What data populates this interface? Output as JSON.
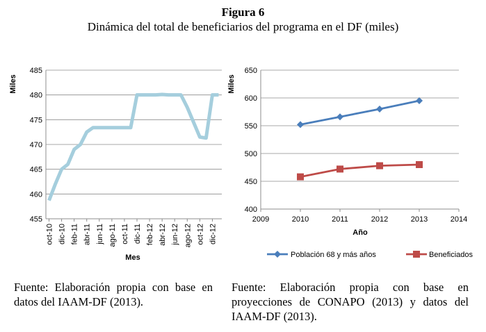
{
  "figure": {
    "label": "Figura 6",
    "title": "Dinámica del total de beneficiarios del programa en el DF (miles)"
  },
  "sources": {
    "left": "Fuente: Elaboración propia con base en datos del IAAM-DF (2013).",
    "right": "Fuente: Elaboración propia con base en proyecciones de CONAPO (2013) y datos del IAAM-DF (2013)."
  },
  "chart_data": [
    {
      "type": "line",
      "xlabel": "Mes",
      "ylabel": "Miles",
      "ylim": [
        455,
        485
      ],
      "yticks": [
        455,
        460,
        465,
        470,
        475,
        480,
        485
      ],
      "grid": "horizontal",
      "x": [
        "oct-10",
        "nov-10",
        "dic-10",
        "ene-11",
        "feb-11",
        "mar-11",
        "abr-11",
        "may-11",
        "jun-11",
        "jul-11",
        "ago-11",
        "sep-11",
        "oct-11",
        "nov-11",
        "dic-11",
        "ene-12",
        "feb-12",
        "mar-12",
        "abr-12",
        "may-12",
        "jun-12",
        "jul-12",
        "ago-12",
        "sep-12",
        "oct-12",
        "nov-12",
        "dic-12",
        "ene-13"
      ],
      "xtick_labels": [
        "oct-10",
        "dic-10",
        "feb-11",
        "abr-11",
        "jun-11",
        "ago-11",
        "oct-11",
        "dic-11",
        "feb-12",
        "abr-12",
        "jun-12",
        "ago-12",
        "oct-12",
        "dic-12"
      ],
      "series": [
        {
          "color": "#a5cedd",
          "values": [
            458.7,
            462.0,
            465.0,
            466.0,
            469.0,
            470.0,
            472.5,
            473.4,
            473.4,
            473.4,
            473.4,
            473.4,
            473.4,
            473.4,
            480.0,
            480.0,
            480.0,
            480.0,
            480.1,
            480.0,
            480.0,
            480.0,
            477.5,
            474.5,
            471.5,
            471.3,
            480.0,
            480.0
          ]
        }
      ]
    },
    {
      "type": "line",
      "xlabel": "Año",
      "ylabel": "Miles",
      "xlim": [
        2009,
        2014
      ],
      "xticks": [
        2009,
        2010,
        2011,
        2012,
        2013,
        2014
      ],
      "ylim": [
        400,
        650
      ],
      "yticks": [
        400,
        450,
        500,
        550,
        600,
        650
      ],
      "grid": "horizontal",
      "legend": "bottom",
      "series": [
        {
          "name": "Población 68 y más años",
          "color": "#4a7ebb",
          "marker": "diamond",
          "x": [
            2010,
            2011,
            2012,
            2013
          ],
          "values": [
            552,
            566,
            580,
            595
          ]
        },
        {
          "name": "Beneficiados",
          "color": "#be4b48",
          "marker": "square",
          "x": [
            2010,
            2011,
            2012,
            2013
          ],
          "values": [
            458,
            472,
            478,
            480
          ]
        }
      ]
    }
  ]
}
